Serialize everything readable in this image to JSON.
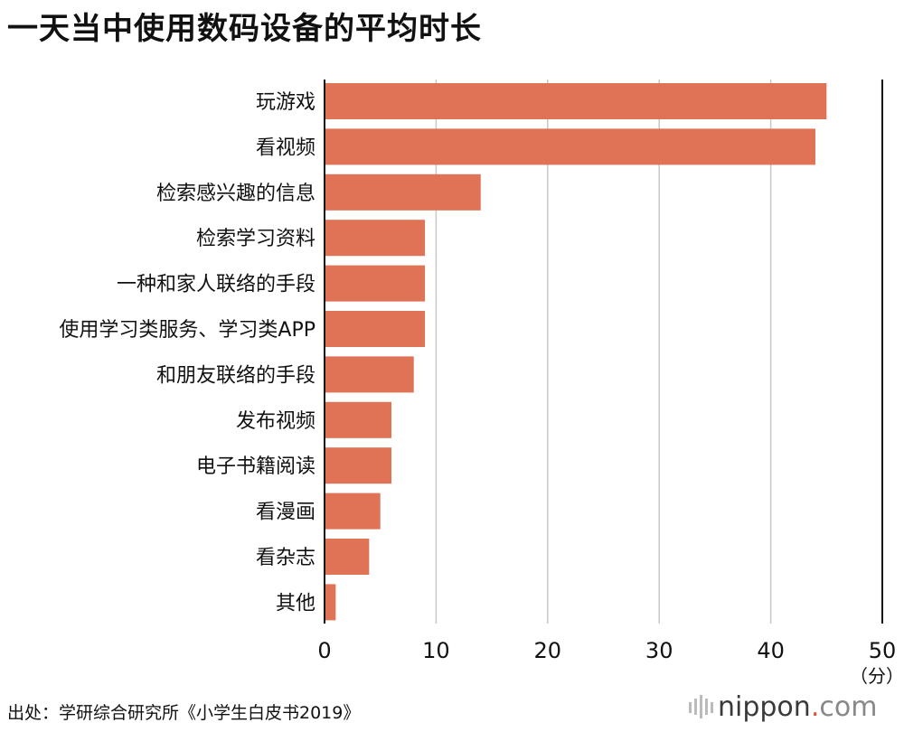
{
  "header": {
    "title": "一天当中使用数码设备的平均时长"
  },
  "footer": {
    "source": "出处：学研综合研究所《小学生白皮书2019》",
    "logo_text": "nippon",
    "logo_dot": ".",
    "logo_suffix": "com"
  },
  "colors": {
    "bar": "#e07256",
    "grid": "#c8c8c8",
    "axis": "#111111"
  },
  "chart_data": {
    "type": "bar",
    "orientation": "horizontal",
    "title": "一天当中使用数码设备的平均时长",
    "categories": [
      "玩游戏",
      "看视频",
      "检索感兴趣的信息",
      "检索学习资料",
      "一种和家人联络的手段",
      "使用学习类服务、学习类APP",
      "和朋友联络的手段",
      "发布视频",
      "电子书籍阅读",
      "看漫画",
      "看杂志",
      "其他"
    ],
    "values": [
      45,
      44,
      14,
      9,
      9,
      9,
      8,
      6,
      6,
      5,
      4,
      1
    ],
    "xlim": [
      0,
      50
    ],
    "xticks": [
      "0",
      "10",
      "20",
      "30",
      "40",
      "50"
    ],
    "xunit": "（分）",
    "grid": true
  }
}
